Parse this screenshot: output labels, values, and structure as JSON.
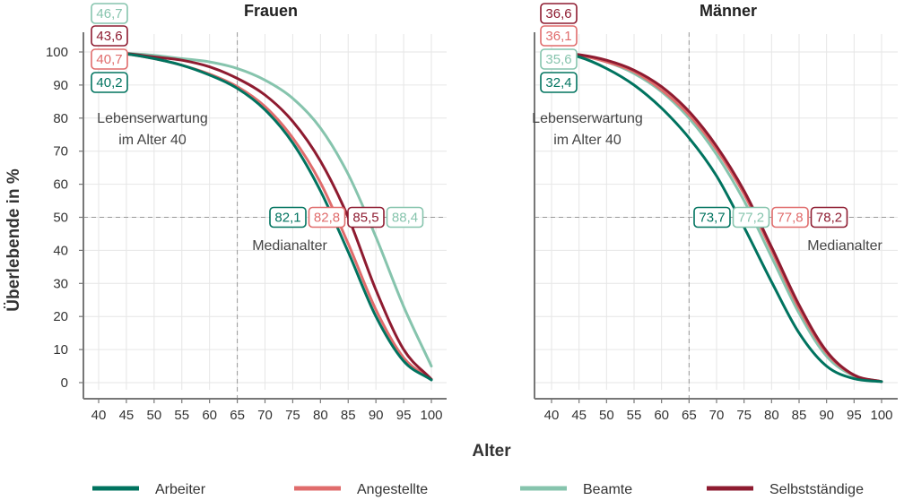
{
  "chart_data": {
    "type": "line",
    "xlabel": "Alter",
    "ylabel": "Überlebende in %",
    "xlim": [
      40,
      100
    ],
    "ylim": [
      0,
      100
    ],
    "x_ticks": [
      40,
      45,
      50,
      55,
      60,
      65,
      70,
      75,
      80,
      85,
      90,
      95,
      100
    ],
    "y_ticks": [
      0,
      10,
      20,
      30,
      40,
      50,
      60,
      70,
      80,
      90,
      100
    ],
    "grid": true,
    "reference_lines": {
      "x": 65,
      "y": 50
    },
    "legend_position": "bottom",
    "series_styles": [
      {
        "name": "Arbeiter",
        "color": "#00735f"
      },
      {
        "name": "Angestellte",
        "color": "#e06c6c"
      },
      {
        "name": "Beamte",
        "color": "#86c4ad"
      },
      {
        "name": "Selbstständige",
        "color": "#8e1b30"
      }
    ],
    "panels": [
      {
        "title": "Frauen",
        "annotation_life_line1": "Lebenserwartung",
        "annotation_life_line2": "im Alter 40",
        "annotation_median": "Medianalter",
        "series": [
          {
            "name": "Arbeiter",
            "life_expectancy": "40,2",
            "median_age": "82,1",
            "x": [
              40,
              45,
              50,
              55,
              60,
              65,
              70,
              75,
              80,
              85,
              90,
              95,
              100
            ],
            "y": [
              100,
              99.4,
              98,
              96,
              93,
              89,
              82.5,
              72.5,
              58,
              39.5,
              20,
              6.5,
              0.8
            ]
          },
          {
            "name": "Angestellte",
            "life_expectancy": "40,7",
            "median_age": "82,8",
            "x": [
              40,
              45,
              50,
              55,
              60,
              65,
              70,
              75,
              80,
              85,
              90,
              95,
              100
            ],
            "y": [
              100,
              99.4,
              98,
              96,
              93.3,
              89.5,
              83.5,
              74,
              60.5,
              42,
              22,
              7.5,
              1
            ]
          },
          {
            "name": "Beamte",
            "life_expectancy": "46,7",
            "median_age": "88,4",
            "x": [
              40,
              45,
              50,
              55,
              60,
              65,
              70,
              75,
              80,
              85,
              90,
              95,
              100
            ],
            "y": [
              100,
              99.6,
              99,
              98,
              97,
              95,
              91.5,
              86,
              77,
              63,
              44,
              23,
              5
            ]
          },
          {
            "name": "Selbstständige",
            "life_expectancy": "43,6",
            "median_age": "85,5",
            "x": [
              40,
              45,
              50,
              55,
              60,
              65,
              70,
              75,
              80,
              85,
              90,
              95,
              100
            ],
            "y": [
              100,
              99.5,
              98.5,
              97.5,
              95.5,
              92,
              87,
              79,
              67,
              50,
              28,
              10,
              1
            ]
          }
        ]
      },
      {
        "title": "Männer",
        "annotation_life_line1": "Lebenserwartung",
        "annotation_life_line2": "im Alter 40",
        "annotation_median": "Medianalter",
        "series": [
          {
            "name": "Arbeiter",
            "life_expectancy": "32,4",
            "median_age": "73,7",
            "x": [
              40,
              45,
              50,
              55,
              60,
              65,
              70,
              75,
              80,
              85,
              90,
              95,
              100
            ],
            "y": [
              100,
              98.5,
              95,
              90,
              83,
              74,
              62.5,
              47,
              30.5,
              15,
              5,
              1.2,
              0.3
            ]
          },
          {
            "name": "Angestellte",
            "life_expectancy": "36,1",
            "median_age": "77,8",
            "x": [
              40,
              45,
              50,
              55,
              60,
              65,
              70,
              75,
              80,
              85,
              90,
              95,
              100
            ],
            "y": [
              100,
              99,
              97,
              94,
              88.5,
              81,
              70.5,
              57,
              40,
              22.5,
              9,
              2.2,
              0.3
            ]
          },
          {
            "name": "Beamte",
            "life_expectancy": "35,6",
            "median_age": "77,2",
            "x": [
              40,
              45,
              50,
              55,
              60,
              65,
              70,
              75,
              80,
              85,
              90,
              95,
              100
            ],
            "y": [
              100,
              99,
              97,
              93.5,
              88,
              80,
              69,
              55,
              38,
              21,
              8,
              2,
              0.3
            ]
          },
          {
            "name": "Selbstständige",
            "life_expectancy": "36,6",
            "median_age": "78,2",
            "x": [
              40,
              45,
              50,
              55,
              60,
              65,
              70,
              75,
              80,
              85,
              90,
              95,
              100
            ],
            "y": [
              100,
              99.2,
              97.5,
              94.5,
              89.5,
              82,
              71.5,
              58,
              41,
              23.5,
              9.5,
              2.3,
              0.3
            ]
          }
        ]
      }
    ]
  }
}
